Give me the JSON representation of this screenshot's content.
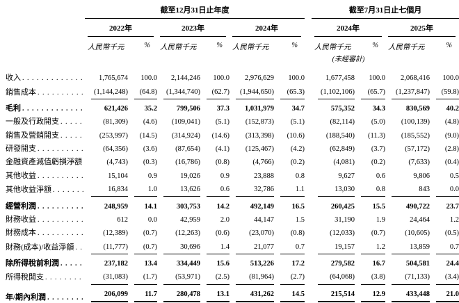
{
  "page": {
    "background_color": "#ffffff",
    "text_color": "#000000",
    "description": "Consolidated income statement table, traditional Chinese"
  },
  "table": {
    "unit_label": "人民幣千元",
    "percent_label": "%",
    "period_groups": [
      {
        "title": "截至12月31日止年度",
        "years": [
          "2022年",
          "2023年",
          "2024年"
        ]
      },
      {
        "title": "截至7月31日止七個月",
        "years": [
          "2024年",
          "2025年"
        ],
        "unaudited_note": "(未經審計)"
      }
    ],
    "rows": [
      {
        "label": "收入",
        "bold": false,
        "rule_below": false,
        "double_rule_below": false,
        "values": [
          "1,765,674",
          "100.0",
          "2,144,246",
          "100.0",
          "2,976,629",
          "100.0",
          "1,677,458",
          "100.0",
          "2,068,416",
          "100.0"
        ]
      },
      {
        "label": "銷售成本",
        "bold": false,
        "rule_below": true,
        "double_rule_below": false,
        "values": [
          "(1,144,248)",
          "(64.8)",
          "(1,344,740)",
          "(62.7)",
          "(1,944,650)",
          "(65.3)",
          "(1,102,106)",
          "(65.7)",
          "(1,237,847)",
          "(59.8)"
        ]
      },
      {
        "label": "毛利",
        "bold": true,
        "rule_below": false,
        "double_rule_below": false,
        "values": [
          "621,426",
          "35.2",
          "799,506",
          "37.3",
          "1,031,979",
          "34.7",
          "575,352",
          "34.3",
          "830,569",
          "40.2"
        ]
      },
      {
        "label": "一般及行政開支",
        "bold": false,
        "rule_below": false,
        "double_rule_below": false,
        "values": [
          "(81,309)",
          "(4.6)",
          "(109,041)",
          "(5.1)",
          "(152,873)",
          "(5.1)",
          "(82,114)",
          "(5.0)",
          "(100,139)",
          "(4.8)"
        ]
      },
      {
        "label": "銷售及營銷開支",
        "bold": false,
        "rule_below": false,
        "double_rule_below": false,
        "values": [
          "(253,997)",
          "(14.5)",
          "(314,924)",
          "(14.6)",
          "(313,398)",
          "(10.6)",
          "(188,540)",
          "(11.3)",
          "(185,552)",
          "(9.0)"
        ]
      },
      {
        "label": "研發開支",
        "bold": false,
        "rule_below": false,
        "double_rule_below": false,
        "values": [
          "(64,356)",
          "(3.6)",
          "(87,654)",
          "(4.1)",
          "(125,467)",
          "(4.2)",
          "(62,849)",
          "(3.7)",
          "(57,172)",
          "(2.8)"
        ]
      },
      {
        "label": "金融資產減值虧損淨額",
        "bold": false,
        "rule_below": false,
        "double_rule_below": false,
        "values": [
          "(4,743)",
          "(0.3)",
          "(16,786)",
          "(0.8)",
          "(4,766)",
          "(0.2)",
          "(4,081)",
          "(0.2)",
          "(7,633)",
          "(0.4)"
        ]
      },
      {
        "label": "其他收益",
        "bold": false,
        "rule_below": false,
        "double_rule_below": false,
        "values": [
          "15,104",
          "0.9",
          "19,026",
          "0.9",
          "23,888",
          "0.8",
          "9,627",
          "0.6",
          "9,806",
          "0.5"
        ]
      },
      {
        "label": "其他收益淨額",
        "bold": false,
        "rule_below": true,
        "double_rule_below": false,
        "values": [
          "16,834",
          "1.0",
          "13,626",
          "0.6",
          "32,786",
          "1.1",
          "13,030",
          "0.8",
          "843",
          "0.0"
        ]
      },
      {
        "label": "經營利潤",
        "bold": true,
        "rule_below": false,
        "double_rule_below": false,
        "values": [
          "248,959",
          "14.1",
          "303,753",
          "14.2",
          "492,149",
          "16.5",
          "260,425",
          "15.5",
          "490,722",
          "23.7"
        ]
      },
      {
        "label": "財務收益",
        "bold": false,
        "rule_below": false,
        "double_rule_below": false,
        "values": [
          "612",
          "0.0",
          "42,959",
          "2.0",
          "44,147",
          "1.5",
          "31,190",
          "1.9",
          "24,464",
          "1.2"
        ]
      },
      {
        "label": "財務成本",
        "bold": false,
        "rule_below": false,
        "double_rule_below": false,
        "values": [
          "(12,389)",
          "(0.7)",
          "(12,263)",
          "(0.6)",
          "(23,070)",
          "(0.8)",
          "(12,033)",
          "(0.7)",
          "(10,605)",
          "(0.5)"
        ]
      },
      {
        "label": "財務(成本)/收益淨額",
        "bold": false,
        "rule_below": true,
        "double_rule_below": false,
        "values": [
          "(11,777)",
          "(0.7)",
          "30,696",
          "1.4",
          "21,077",
          "0.7",
          "19,157",
          "1.2",
          "13,859",
          "0.7"
        ]
      },
      {
        "label": "除所得稅前利潤",
        "bold": true,
        "rule_below": false,
        "double_rule_below": false,
        "values": [
          "237,182",
          "13.4",
          "334,449",
          "15.6",
          "513,226",
          "17.2",
          "279,582",
          "16.7",
          "504,581",
          "24.4"
        ]
      },
      {
        "label": "所得稅開支",
        "bold": false,
        "rule_below": true,
        "double_rule_below": false,
        "values": [
          "(31,083)",
          "(1.7)",
          "(53,971)",
          "(2.5)",
          "(81,964)",
          "(2.7)",
          "(64,068)",
          "(3.8)",
          "(71,133)",
          "(3.4)"
        ]
      },
      {
        "label": "年/期內利潤",
        "bold": true,
        "rule_below": false,
        "double_rule_below": true,
        "values": [
          "206,099",
          "11.7",
          "280,478",
          "13.1",
          "431,262",
          "14.5",
          "215,514",
          "12.9",
          "433,448",
          "21.0"
        ]
      }
    ]
  }
}
